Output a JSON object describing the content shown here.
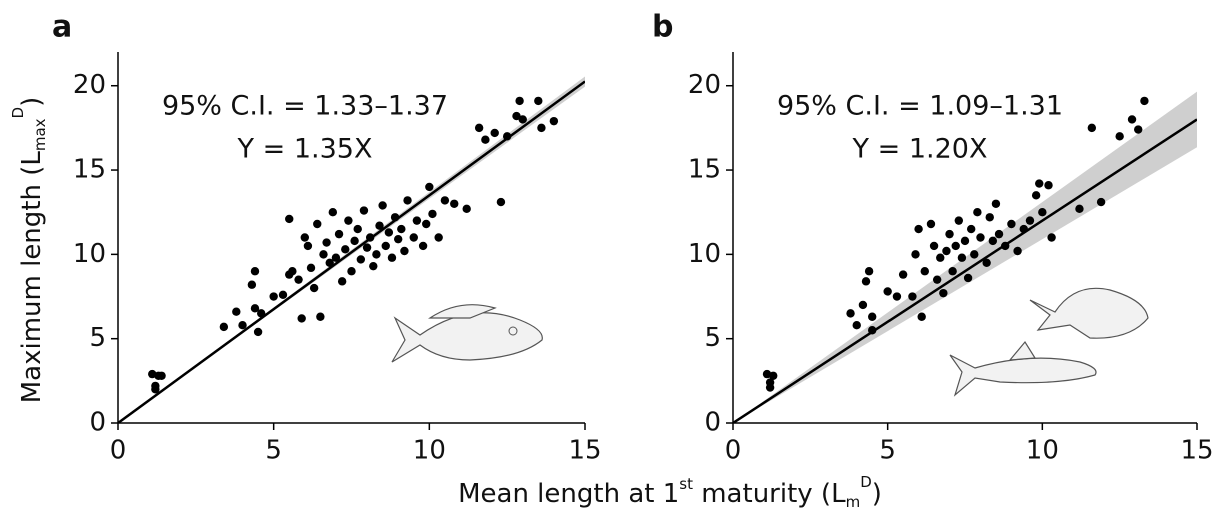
{
  "chart_data": [
    {
      "type": "scatter",
      "panel": "a",
      "color": "#000000",
      "ylabel": {
        "text": "Maximum length (L",
        "sub": "max",
        "sup": "D",
        "end": ")"
      },
      "xlabel": {
        "text": "Mean length at 1",
        "sup1": "st",
        "mid": " maturity (L",
        "sub": "m",
        "sup": "D",
        "end": ")"
      },
      "annotations": [
        "95% C.I. = 1.33–1.37",
        "Y = 1.35X"
      ],
      "fit": {
        "slope": 1.35,
        "ci": [
          1.33,
          1.37
        ]
      },
      "xlim": [
        0,
        15
      ],
      "ylim": [
        0,
        22
      ],
      "xticks": [
        0,
        5,
        10,
        15
      ],
      "yticks": [
        0,
        5,
        10,
        15,
        20
      ],
      "x": [
        1.1,
        1.2,
        1.3,
        1.4,
        1.2,
        3.4,
        3.8,
        4.0,
        4.3,
        4.4,
        4.4,
        4.5,
        4.6,
        5.0,
        5.3,
        5.5,
        5.5,
        5.6,
        5.8,
        5.9,
        6.0,
        6.1,
        6.2,
        6.3,
        6.4,
        6.5,
        6.6,
        6.7,
        6.8,
        6.9,
        7.0,
        7.1,
        7.2,
        7.3,
        7.4,
        7.5,
        7.6,
        7.7,
        7.8,
        7.9,
        8.0,
        8.1,
        8.2,
        8.3,
        8.4,
        8.5,
        8.6,
        8.7,
        8.8,
        8.9,
        9.0,
        9.1,
        9.2,
        9.3,
        9.5,
        9.6,
        9.8,
        9.9,
        10.0,
        10.1,
        10.3,
        10.5,
        10.8,
        11.2,
        11.6,
        11.8,
        12.1,
        12.3,
        12.5,
        12.8,
        12.9,
        13.0,
        13.5,
        13.6,
        14.0
      ],
      "values": [
        2.9,
        2.0,
        2.8,
        2.8,
        2.2,
        5.7,
        6.6,
        5.8,
        8.2,
        9.0,
        6.8,
        5.4,
        6.5,
        7.5,
        7.6,
        8.8,
        12.1,
        9.0,
        8.5,
        6.2,
        11.0,
        10.5,
        9.2,
        8.0,
        11.8,
        6.3,
        10.0,
        10.7,
        9.5,
        12.5,
        9.8,
        11.2,
        8.4,
        10.3,
        12.0,
        9.0,
        10.8,
        11.5,
        9.7,
        12.6,
        10.4,
        11.0,
        9.3,
        10.0,
        11.7,
        12.9,
        10.5,
        11.3,
        9.8,
        12.2,
        10.9,
        11.5,
        10.2,
        13.2,
        11.0,
        12.0,
        10.5,
        11.8,
        14.0,
        12.4,
        11.0,
        13.2,
        13.0,
        12.7,
        17.5,
        16.8,
        17.2,
        13.1,
        17.0,
        18.2,
        19.1,
        18.0,
        19.1,
        17.5,
        17.9
      ]
    },
    {
      "type": "scatter",
      "panel": "b",
      "color": "#000000",
      "annotations": [
        "95% C.I. = 1.09–1.31",
        "Y = 1.20X"
      ],
      "fit": {
        "slope": 1.2,
        "ci": [
          1.09,
          1.31
        ]
      },
      "xlim": [
        0,
        15
      ],
      "ylim": [
        0,
        22
      ],
      "xticks": [
        0,
        5,
        10,
        15
      ],
      "yticks": [
        0,
        5,
        10,
        15,
        20
      ],
      "x": [
        1.1,
        1.2,
        1.3,
        1.2,
        3.8,
        4.0,
        4.2,
        4.3,
        4.4,
        4.5,
        4.5,
        5.0,
        5.3,
        5.5,
        5.8,
        5.9,
        6.0,
        6.1,
        6.2,
        6.4,
        6.5,
        6.6,
        6.7,
        6.8,
        6.9,
        7.0,
        7.1,
        7.2,
        7.3,
        7.4,
        7.5,
        7.6,
        7.7,
        7.8,
        7.9,
        8.0,
        8.2,
        8.3,
        8.4,
        8.5,
        8.6,
        8.8,
        9.0,
        9.2,
        9.4,
        9.6,
        9.8,
        9.9,
        10.0,
        10.2,
        10.3,
        11.2,
        11.6,
        11.9,
        12.5,
        12.9,
        13.1,
        13.3
      ],
      "values": [
        2.9,
        2.1,
        2.8,
        2.4,
        6.5,
        5.8,
        7.0,
        8.4,
        9.0,
        6.3,
        5.5,
        7.8,
        7.5,
        8.8,
        7.5,
        10.0,
        11.5,
        6.3,
        9.0,
        11.8,
        10.5,
        8.5,
        9.8,
        7.7,
        10.2,
        11.2,
        9.0,
        10.5,
        12.0,
        9.8,
        10.8,
        8.6,
        11.5,
        10.0,
        12.5,
        11.0,
        9.5,
        12.2,
        10.8,
        13.0,
        11.2,
        10.5,
        11.8,
        10.2,
        11.5,
        12.0,
        13.5,
        14.2,
        12.5,
        14.1,
        11.0,
        12.7,
        17.5,
        13.1,
        17.0,
        18.0,
        17.4,
        19.1
      ]
    }
  ]
}
